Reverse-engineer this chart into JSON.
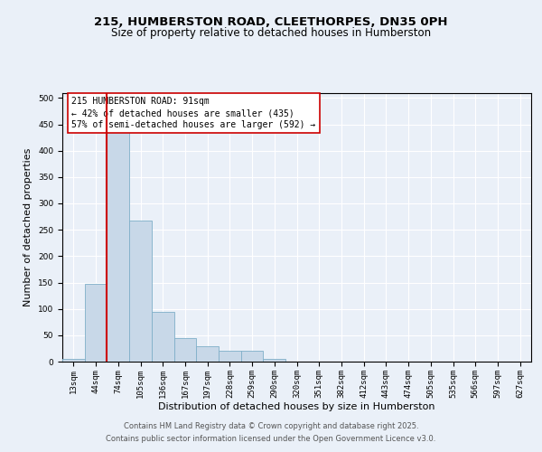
{
  "title_line1": "215, HUMBERSTON ROAD, CLEETHORPES, DN35 0PH",
  "title_line2": "Size of property relative to detached houses in Humberston",
  "xlabel": "Distribution of detached houses by size in Humberston",
  "ylabel": "Number of detached properties",
  "bar_color": "#c8d8e8",
  "bar_edgecolor": "#7fafc8",
  "vline_color": "#cc0000",
  "vline_x_index": 2,
  "categories": [
    "13sqm",
    "44sqm",
    "74sqm",
    "105sqm",
    "136sqm",
    "167sqm",
    "197sqm",
    "228sqm",
    "259sqm",
    "290sqm",
    "320sqm",
    "351sqm",
    "382sqm",
    "412sqm",
    "443sqm",
    "474sqm",
    "505sqm",
    "535sqm",
    "566sqm",
    "597sqm",
    "627sqm"
  ],
  "values": [
    5,
    148,
    460,
    268,
    95,
    45,
    30,
    20,
    20,
    5,
    0,
    0,
    0,
    0,
    0,
    0,
    0,
    0,
    0,
    0,
    0
  ],
  "ylim": [
    0,
    510
  ],
  "yticks": [
    0,
    50,
    100,
    150,
    200,
    250,
    300,
    350,
    400,
    450,
    500
  ],
  "annotation_text": "215 HUMBERSTON ROAD: 91sqm\n← 42% of detached houses are smaller (435)\n57% of semi-detached houses are larger (592) →",
  "footer_line1": "Contains HM Land Registry data © Crown copyright and database right 2025.",
  "footer_line2": "Contains public sector information licensed under the Open Government Licence v3.0.",
  "bg_color": "#eaf0f8",
  "plot_bg_color": "#eaf0f8",
  "grid_color": "#ffffff",
  "title_fontsize": 9.5,
  "subtitle_fontsize": 8.5,
  "axis_label_fontsize": 8,
  "tick_fontsize": 6.5,
  "annotation_fontsize": 7,
  "footer_fontsize": 6
}
